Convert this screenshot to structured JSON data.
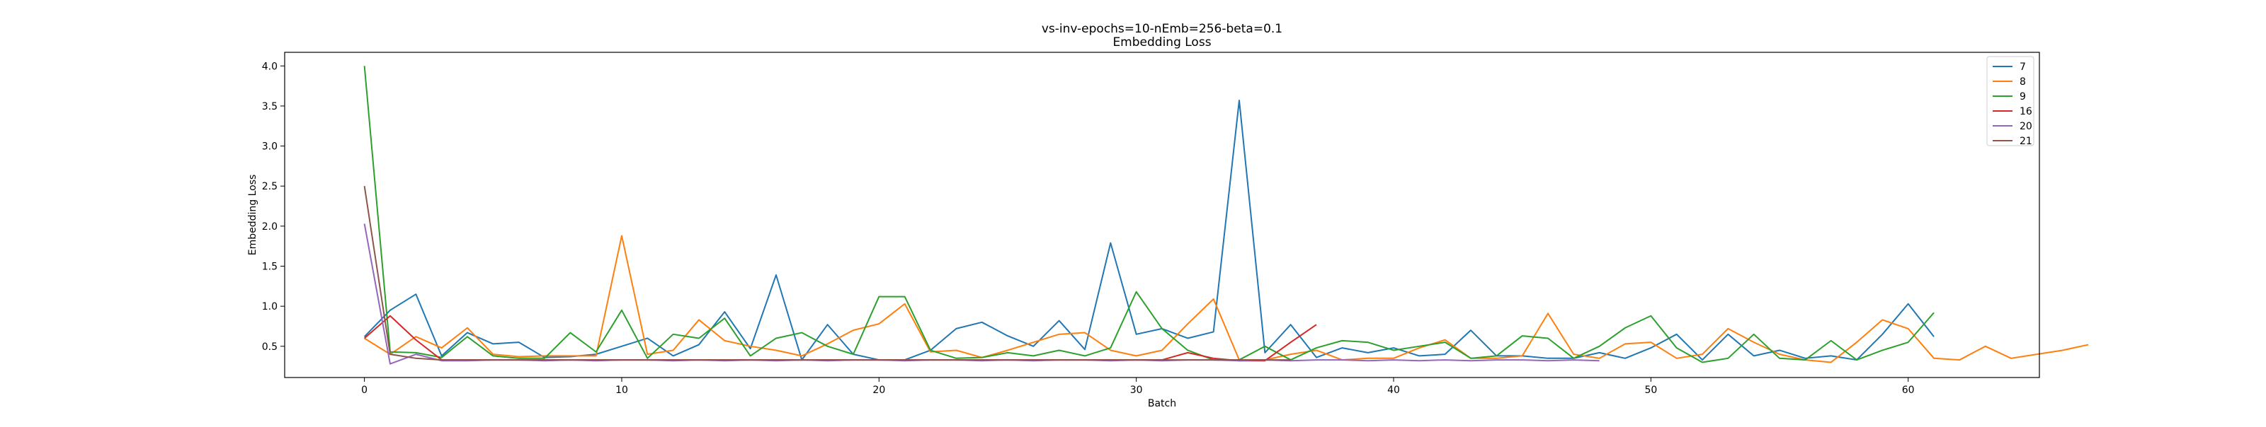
{
  "chart_data": {
    "type": "line",
    "title": "vs-inv-epochs=10-nEmb=256-beta=0.1",
    "subtitle": "Embedding Loss",
    "xlabel": "Batch",
    "ylabel": "Embedding Loss",
    "xlim": [
      -3.1,
      65.1
    ],
    "ylim": [
      0.11,
      4.17
    ],
    "xticks": [
      0,
      10,
      20,
      30,
      40,
      50,
      60
    ],
    "xtick_labels": [
      "0",
      "10",
      "20",
      "30",
      "40",
      "50",
      "60"
    ],
    "yticks": [
      0.5,
      1.0,
      1.5,
      2.0,
      2.5,
      3.0,
      3.5,
      4.0
    ],
    "ytick_labels": [
      "0.5",
      "1.0",
      "1.5",
      "2.0",
      "2.5",
      "3.0",
      "3.5",
      "4.0"
    ],
    "grid": false,
    "legend_position": "top-right",
    "series": [
      {
        "name": "7",
        "color": "#1f77b4",
        "values": [
          0.62,
          0.95,
          1.15,
          0.38,
          0.67,
          0.53,
          0.55,
          0.36,
          0.37,
          0.4,
          0.5,
          0.6,
          0.38,
          0.52,
          0.93,
          0.47,
          1.39,
          0.33,
          0.77,
          0.4,
          0.33,
          0.33,
          0.45,
          0.72,
          0.8,
          0.63,
          0.5,
          0.82,
          0.46,
          1.79,
          0.65,
          0.72,
          0.6,
          0.68,
          3.57,
          0.42,
          0.77,
          0.36,
          0.48,
          0.42,
          0.48,
          0.38,
          0.4,
          0.7,
          0.38,
          0.38,
          0.35,
          0.35,
          0.42,
          0.35,
          0.48,
          0.65,
          0.33,
          0.65,
          0.38,
          0.45,
          0.35,
          0.38,
          0.33,
          0.65,
          1.03,
          0.62
        ]
      },
      {
        "name": "8",
        "color": "#ff7f0e",
        "values": [
          0.6,
          0.4,
          0.62,
          0.48,
          0.73,
          0.4,
          0.37,
          0.38,
          0.38,
          0.38,
          1.88,
          0.4,
          0.45,
          0.83,
          0.57,
          0.5,
          0.45,
          0.38,
          0.53,
          0.7,
          0.78,
          1.03,
          0.43,
          0.45,
          0.36,
          0.45,
          0.55,
          0.65,
          0.67,
          0.45,
          0.38,
          0.45,
          0.78,
          1.09,
          0.33,
          0.33,
          0.4,
          0.45,
          0.33,
          0.35,
          0.35,
          0.48,
          0.58,
          0.35,
          0.35,
          0.38,
          0.91,
          0.4,
          0.35,
          0.53,
          0.55,
          0.35,
          0.4,
          0.72,
          0.55,
          0.4,
          0.33,
          0.3,
          0.55,
          0.83,
          0.72,
          0.35,
          0.33,
          0.5,
          0.35,
          0.4,
          0.45,
          0.52
        ]
      },
      {
        "name": "9",
        "color": "#2ca02c",
        "values": [
          4.0,
          0.43,
          0.42,
          0.36,
          0.62,
          0.38,
          0.35,
          0.35,
          0.67,
          0.43,
          0.95,
          0.35,
          0.65,
          0.6,
          0.85,
          0.38,
          0.6,
          0.67,
          0.5,
          0.4,
          1.12,
          1.12,
          0.45,
          0.35,
          0.36,
          0.42,
          0.38,
          0.45,
          0.38,
          0.48,
          1.18,
          0.72,
          0.45,
          0.33,
          0.33,
          0.5,
          0.33,
          0.48,
          0.57,
          0.55,
          0.45,
          0.5,
          0.55,
          0.35,
          0.38,
          0.63,
          0.6,
          0.35,
          0.5,
          0.73,
          0.88,
          0.48,
          0.3,
          0.35,
          0.65,
          0.35,
          0.33,
          0.57,
          0.33,
          0.45,
          0.55,
          0.92
        ]
      },
      {
        "name": "16",
        "color": "#d62728",
        "values": [
          0.6,
          0.88,
          0.58,
          0.33,
          0.33,
          0.33,
          0.33,
          0.33,
          0.33,
          0.33,
          0.33,
          0.33,
          0.33,
          0.33,
          0.33,
          0.33,
          0.33,
          0.33,
          0.33,
          0.33,
          0.33,
          0.33,
          0.33,
          0.33,
          0.33,
          0.33,
          0.33,
          0.33,
          0.33,
          0.33,
          0.33,
          0.33,
          0.42,
          0.35,
          0.32,
          0.32,
          0.55,
          0.77
        ]
      },
      {
        "name": "20",
        "color": "#9467bd",
        "values": [
          2.03,
          0.28,
          0.4,
          0.32,
          0.32,
          0.33,
          0.33,
          0.32,
          0.33,
          0.32,
          0.33,
          0.33,
          0.32,
          0.33,
          0.32,
          0.33,
          0.32,
          0.33,
          0.32,
          0.33,
          0.33,
          0.32,
          0.33,
          0.33,
          0.32,
          0.33,
          0.32,
          0.33,
          0.33,
          0.32,
          0.33,
          0.32,
          0.33,
          0.33,
          0.32,
          0.33,
          0.32,
          0.33,
          0.33,
          0.32,
          0.33,
          0.32,
          0.33,
          0.32,
          0.33,
          0.33,
          0.32,
          0.33,
          0.32
        ]
      },
      {
        "name": "21",
        "color": "#8c564b",
        "values": [
          2.5,
          0.4,
          0.35,
          0.33,
          0.33,
          0.33,
          0.33,
          0.33,
          0.33,
          0.33,
          0.33,
          0.33,
          0.33,
          0.33,
          0.33,
          0.33,
          0.33,
          0.33,
          0.33,
          0.33,
          0.33,
          0.33,
          0.33,
          0.33,
          0.33,
          0.33,
          0.33,
          0.33,
          0.33,
          0.33,
          0.33,
          0.33,
          0.33,
          0.33,
          0.33,
          0.33,
          0.33
        ]
      }
    ]
  }
}
